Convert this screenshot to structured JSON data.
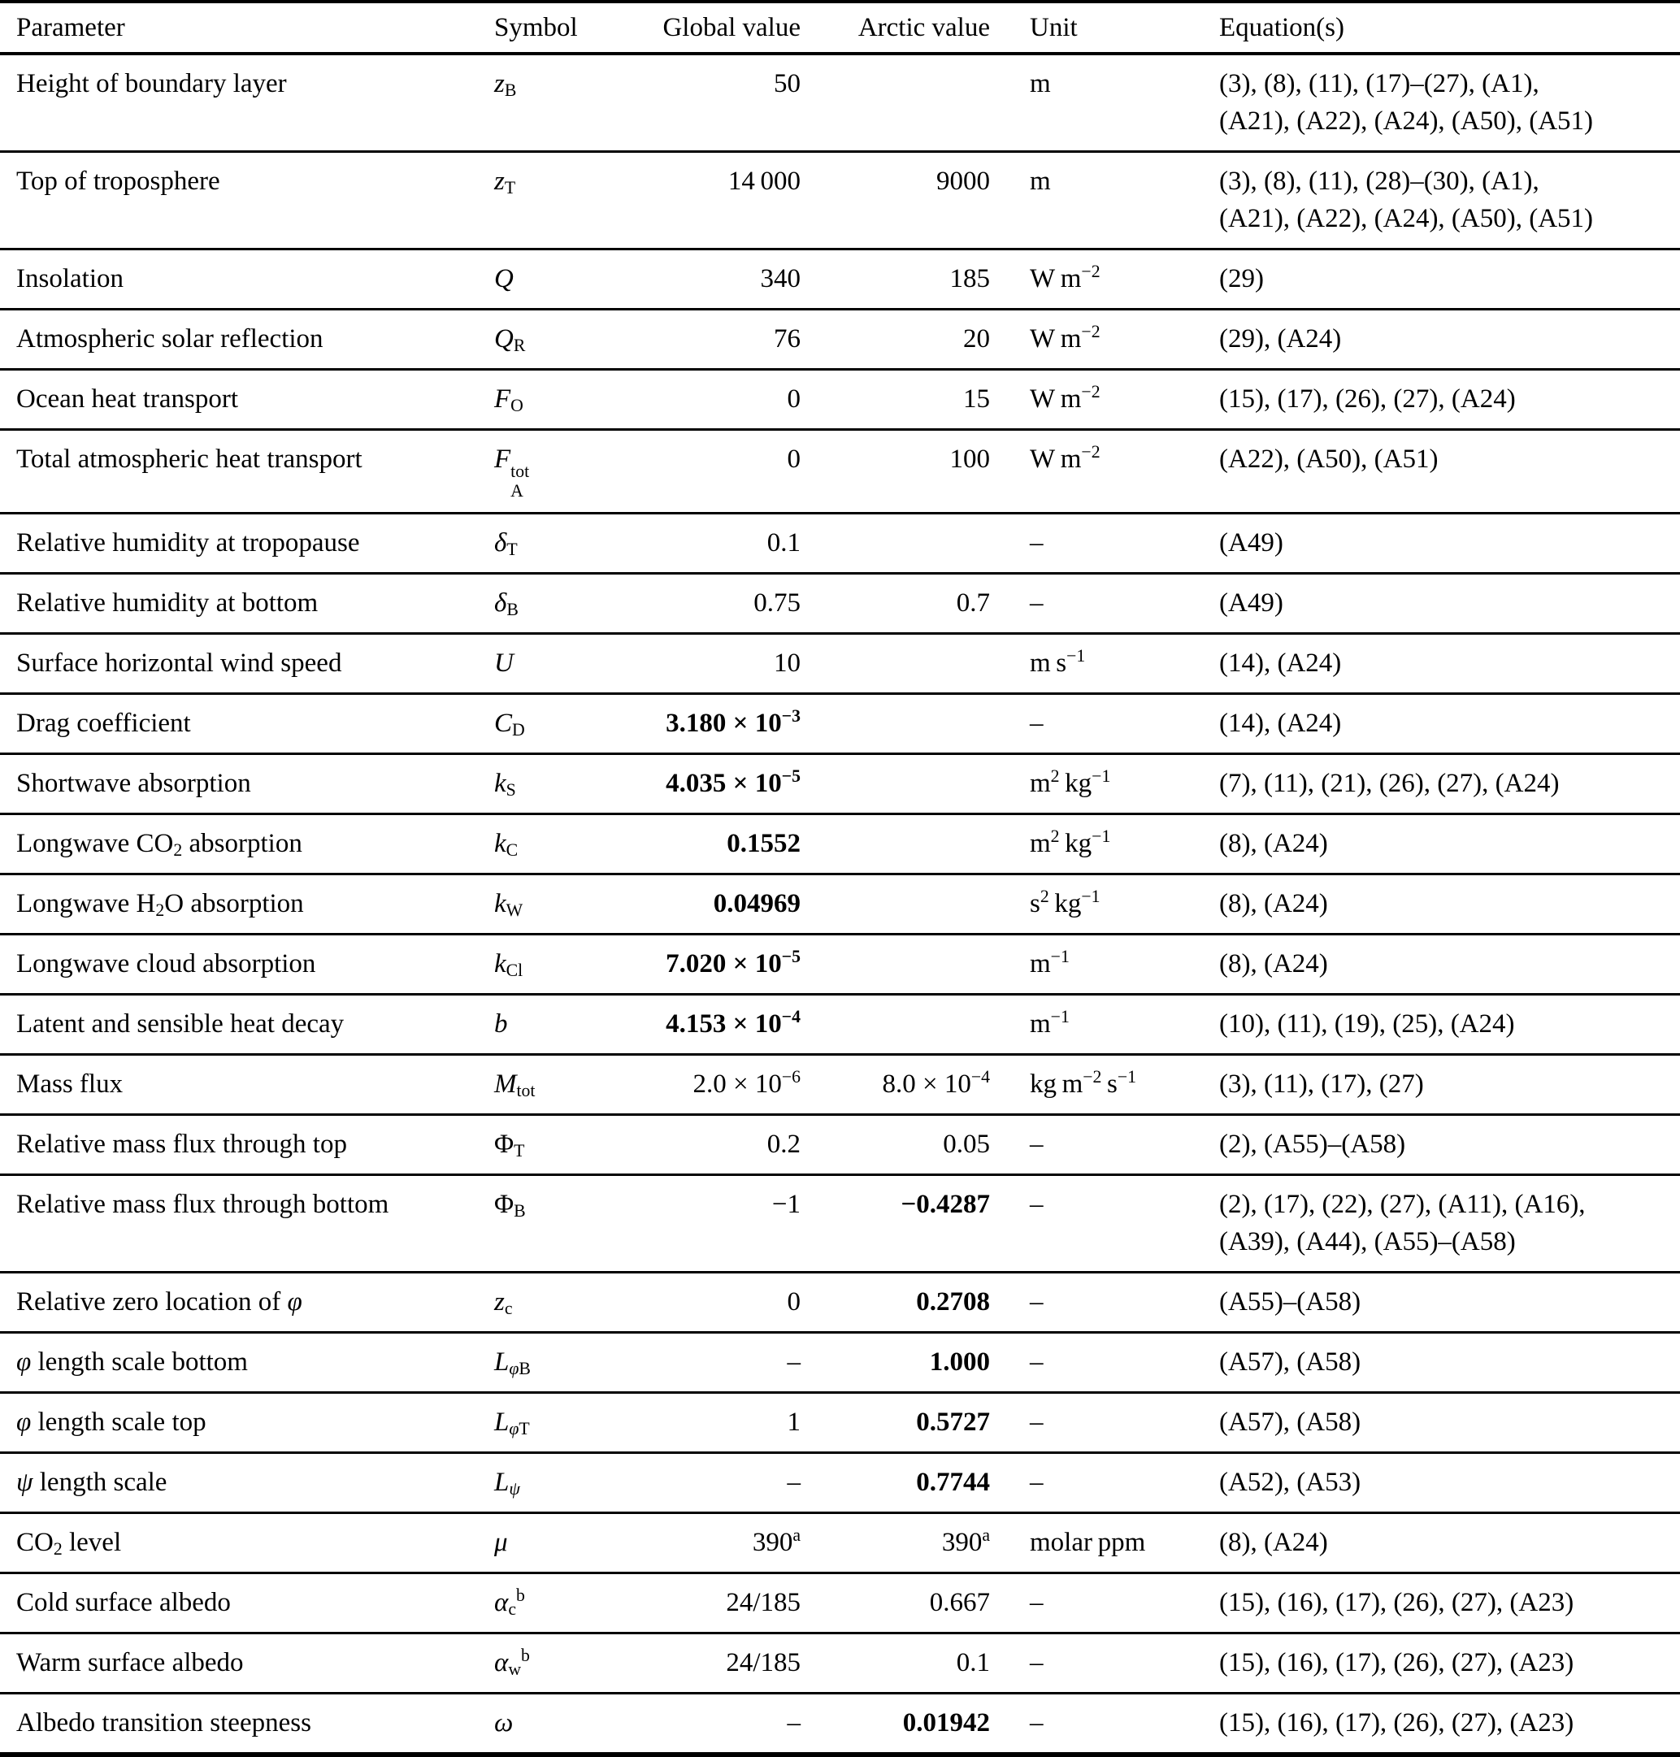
{
  "table": {
    "columns": [
      "Parameter",
      "Symbol",
      "Global value",
      "Arctic value",
      "Unit",
      "Equation(s)"
    ],
    "rows": [
      {
        "parameter": "Height of boundary layer",
        "symbol": "*z*_{B}",
        "global": "50",
        "arctic": "",
        "unit": "m",
        "equations": "(3), (8), (11), (17)–(27), (A1),\n(A21), (A22), (A24), (A50), (A51)"
      },
      {
        "parameter": "Top of troposphere",
        "symbol": "*z*_{T}",
        "global": "14 000",
        "arctic": "9000",
        "unit": "m",
        "equations": "(3), (8), (11), (28)–(30), (A1),\n(A21), (A22), (A24), (A50), (A51)"
      },
      {
        "parameter": "Insolation",
        "symbol": "*Q*",
        "global": "340",
        "arctic": "185",
        "unit": "W m^{−2}",
        "equations": "(29)"
      },
      {
        "parameter": "Atmospheric solar reflection",
        "symbol": "*Q*_{R}",
        "global": "76",
        "arctic": "20",
        "unit": "W m^{−2}",
        "equations": "(29), (A24)"
      },
      {
        "parameter": "Ocean heat transport",
        "symbol": "*F*_{O}",
        "global": "0",
        "arctic": "15",
        "unit": "W m^{−2}",
        "equations": "(15), (17), (26), (27), (A24)"
      },
      {
        "parameter": "Total atmospheric heat transport",
        "symbol": "*F*@{tot}{A}",
        "global": "0",
        "arctic": "100",
        "unit": "W m^{−2}",
        "equations": "(A22), (A50), (A51)"
      },
      {
        "parameter": "Relative humidity at tropopause",
        "symbol": "*δ*_{T}",
        "global": "0.1",
        "arctic": "",
        "unit": "–",
        "equations": "(A49)"
      },
      {
        "parameter": "Relative humidity at bottom",
        "symbol": "*δ*_{B}",
        "global": "0.75",
        "arctic": "0.7",
        "unit": "–",
        "equations": "(A49)"
      },
      {
        "parameter": "Surface horizontal wind speed",
        "symbol": "*U*",
        "global": "10",
        "arctic": "",
        "unit": "m s^{−1}",
        "equations": "(14), (A24)"
      },
      {
        "parameter": "Drag coefficient",
        "symbol": "*C*_{D}",
        "global": "**3.180 × 10^{−3}**",
        "arctic": "",
        "unit": "–",
        "equations": "(14), (A24)"
      },
      {
        "parameter": "Shortwave absorption",
        "symbol": "*k*_{S}",
        "global": "**4.035 × 10^{−5}**",
        "arctic": "",
        "unit": "m^{2} kg^{−1}",
        "equations": "(7), (11), (21), (26), (27), (A24)"
      },
      {
        "parameter": "Longwave CO_{2} absorption",
        "symbol": "*k*_{C}",
        "global": "**0.1552**",
        "arctic": "",
        "unit": "m^{2} kg^{−1}",
        "equations": "(8), (A24)"
      },
      {
        "parameter": "Longwave H_{2}O absorption",
        "symbol": "*k*_{W}",
        "global": "**0.04969**",
        "arctic": "",
        "unit": "s^{2} kg^{−1}",
        "equations": "(8), (A24)"
      },
      {
        "parameter": "Longwave cloud absorption",
        "symbol": "*k*_{Cl}",
        "global": "**7.020 × 10^{−5}**",
        "arctic": "",
        "unit": "m^{−1}",
        "equations": "(8), (A24)"
      },
      {
        "parameter": "Latent and sensible heat decay",
        "symbol": "*b*",
        "global": "**4.153 × 10^{−4}**",
        "arctic": "",
        "unit": "m^{−1}",
        "equations": "(10), (11), (19), (25), (A24)"
      },
      {
        "parameter": "Mass flux",
        "symbol": "*M*_{tot}",
        "global": "2.0 × 10^{−6}",
        "arctic": "8.0 × 10^{−4}",
        "unit": "kg m^{−2} s^{−1}",
        "equations": "(3), (11), (17), (27)"
      },
      {
        "parameter": "Relative mass flux through top",
        "symbol": "Φ_{T}",
        "global": "0.2",
        "arctic": "0.05",
        "unit": "–",
        "equations": "(2), (A55)–(A58)"
      },
      {
        "parameter": "Relative mass flux through bottom",
        "symbol": "Φ_{B}",
        "global": "−1",
        "arctic": "**−0.4287**",
        "unit": "–",
        "equations": "(2), (17), (22), (27), (A11), (A16),\n(A39), (A44), (A55)–(A58)"
      },
      {
        "parameter": "Relative zero location of *φ*",
        "symbol": "*z*_{c}",
        "global": "0",
        "arctic": "**0.2708**",
        "unit": "–",
        "equations": "(A55)–(A58)"
      },
      {
        "parameter": "*φ* length scale bottom",
        "symbol": "*L*_{*φ*B}",
        "global": "–",
        "arctic": "**1.000**",
        "unit": "–",
        "equations": "(A57), (A58)"
      },
      {
        "parameter": "*φ* length scale top",
        "symbol": "*L*_{*φ*T}",
        "global": "1",
        "arctic": "**0.5727**",
        "unit": "–",
        "equations": "(A57), (A58)"
      },
      {
        "parameter": "*ψ* length scale",
        "symbol": "*L*_{*ψ*}",
        "global": "–",
        "arctic": "**0.7744**",
        "unit": "–",
        "equations": "(A52), (A53)"
      },
      {
        "parameter": "CO_{2} level",
        "symbol": "*μ*",
        "global": "390^{a}",
        "arctic": "390^{a}",
        "unit": "molar ppm",
        "equations": "(8), (A24)"
      },
      {
        "parameter": "Cold surface albedo",
        "symbol": "*α*_{c}^{b}",
        "global": "24/185",
        "arctic": "0.667",
        "unit": "–",
        "equations": "(15), (16), (17), (26), (27), (A23)"
      },
      {
        "parameter": "Warm surface albedo",
        "symbol": "*α*_{w}^{b}",
        "global": "24/185",
        "arctic": "0.1",
        "unit": "–",
        "equations": "(15), (16), (17), (26), (27), (A23)"
      },
      {
        "parameter": "Albedo transition steepness",
        "symbol": "*ω*",
        "global": "–",
        "arctic": "**0.01942**",
        "unit": "–",
        "equations": "(15), (16), (17), (26), (27), (A23)"
      }
    ]
  }
}
